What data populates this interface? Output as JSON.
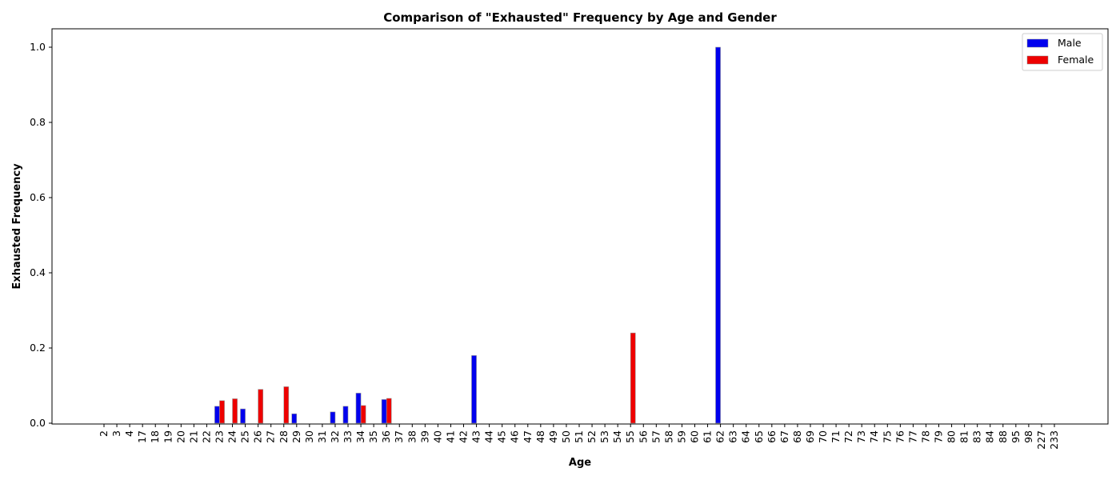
{
  "chart_data": {
    "type": "bar",
    "title": "Comparison of \"Exhausted\" Frequency by Age and Gender",
    "xlabel": "Age",
    "ylabel": "Exhausted Frequency",
    "ylim": [
      0.0,
      1.05
    ],
    "yticks": [
      "0.0",
      "0.2",
      "0.4",
      "0.6",
      "0.8",
      "1.0"
    ],
    "legend_position": "top-right",
    "categories": [
      "2",
      "3",
      "4",
      "17",
      "18",
      "19",
      "20",
      "21",
      "22",
      "23",
      "24",
      "25",
      "26",
      "27",
      "28",
      "29",
      "30",
      "31",
      "32",
      "33",
      "34",
      "35",
      "36",
      "37",
      "38",
      "39",
      "40",
      "41",
      "42",
      "43",
      "44",
      "45",
      "46",
      "47",
      "48",
      "49",
      "50",
      "51",
      "52",
      "53",
      "54",
      "55",
      "56",
      "57",
      "58",
      "59",
      "60",
      "61",
      "62",
      "63",
      "64",
      "65",
      "66",
      "67",
      "68",
      "69",
      "70",
      "71",
      "72",
      "73",
      "74",
      "75",
      "76",
      "77",
      "78",
      "79",
      "80",
      "81",
      "83",
      "84",
      "88",
      "95",
      "98",
      "227",
      "233"
    ],
    "series": [
      {
        "name": "Male",
        "color": "#0000ee",
        "values": [
          0,
          0,
          0,
          0,
          0,
          0,
          0,
          0,
          0,
          0.045,
          0,
          0.038,
          0,
          0,
          0,
          0.025,
          0,
          0,
          0.03,
          0.045,
          0.08,
          0,
          0.063,
          0,
          0,
          0,
          0,
          0,
          0,
          0.18,
          0,
          0,
          0,
          0,
          0,
          0,
          0,
          0,
          0,
          0,
          0,
          0,
          0,
          0,
          0,
          0,
          0,
          0,
          1.0,
          0,
          0,
          0,
          0,
          0,
          0,
          0,
          0,
          0,
          0,
          0,
          0,
          0,
          0,
          0,
          0,
          0,
          0,
          0,
          0,
          0,
          0,
          0,
          0,
          0,
          0
        ]
      },
      {
        "name": "Female",
        "color": "#ee0000",
        "values": [
          0,
          0,
          0,
          0,
          0,
          0,
          0,
          0,
          0,
          0.06,
          0.065,
          0,
          0.09,
          0,
          0.097,
          0,
          0,
          0,
          0,
          0,
          0.047,
          0,
          0.066,
          0,
          0,
          0,
          0,
          0,
          0,
          0,
          0,
          0,
          0,
          0,
          0,
          0,
          0,
          0,
          0,
          0,
          0,
          0.24,
          0,
          0,
          0,
          0,
          0,
          0,
          0,
          0,
          0,
          0,
          0,
          0,
          0,
          0,
          0,
          0,
          0,
          0,
          0,
          0,
          0,
          0,
          0,
          0,
          0,
          0,
          0,
          0,
          0,
          0,
          0,
          0,
          0
        ]
      }
    ]
  }
}
